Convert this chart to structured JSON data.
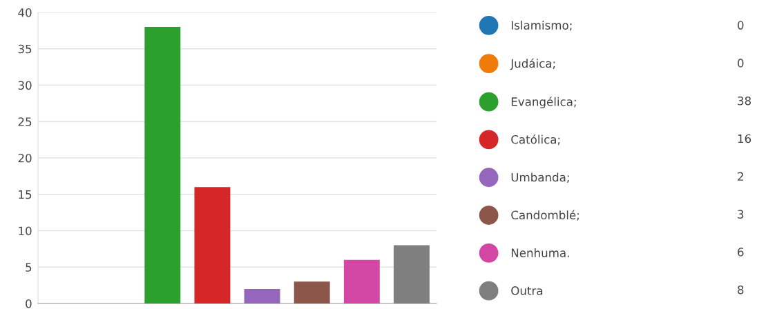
{
  "chart_data": {
    "type": "bar",
    "categories": [
      null,
      null,
      null,
      null,
      null,
      null,
      null,
      null
    ],
    "series": [
      {
        "name": "Islamismo;",
        "color": "#1f77b4",
        "values": [
          0,
          null,
          null,
          null,
          null,
          null,
          null,
          null
        ]
      },
      {
        "name": "Judáica;",
        "color": "#ef7b0b",
        "values": [
          null,
          0,
          null,
          null,
          null,
          null,
          null,
          null
        ]
      },
      {
        "name": "Evangélica;",
        "color": "#2ca02c",
        "values": [
          null,
          null,
          38,
          null,
          null,
          null,
          null,
          null
        ]
      },
      {
        "name": "Católica;",
        "color": "#d62728",
        "values": [
          null,
          null,
          null,
          16,
          null,
          null,
          null,
          null
        ]
      },
      {
        "name": "Umbanda;",
        "color": "#9467bd",
        "values": [
          null,
          null,
          null,
          null,
          2,
          null,
          null,
          null
        ]
      },
      {
        "name": "Candomblé;",
        "color": "#8c564b",
        "values": [
          null,
          null,
          null,
          null,
          null,
          3,
          null,
          null
        ]
      },
      {
        "name": "Nenhuma.",
        "color": "#d147a3",
        "values": [
          null,
          null,
          null,
          null,
          null,
          null,
          6,
          null
        ]
      },
      {
        "name": "Outra",
        "color": "#7f7f7f",
        "values": [
          null,
          null,
          null,
          null,
          null,
          null,
          null,
          8
        ]
      }
    ],
    "ylim": [
      0,
      40
    ],
    "yticks": [
      0,
      5,
      10,
      15,
      20,
      25,
      30,
      35,
      40
    ],
    "annotations": [
      "0",
      "0",
      "38",
      "16",
      "2",
      "3",
      "6",
      "8"
    ],
    "grid": "y",
    "legend": "right",
    "tick_labels": "y"
  }
}
